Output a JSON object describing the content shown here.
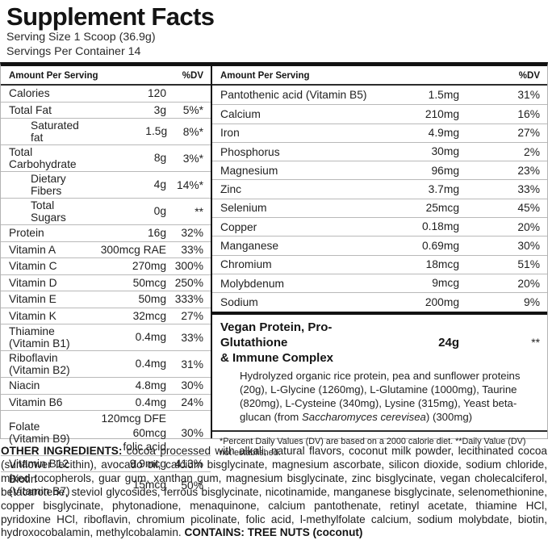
{
  "colors": {
    "text": "#1f1f1f",
    "bar": "#121212",
    "separator": "#b9b9b9",
    "background": "#ffffff"
  },
  "header": {
    "title": "Supplement Facts",
    "serving_size": "Serving Size 1 Scoop (36.9g)",
    "servings_per_container": "Servings Per Container 14"
  },
  "table": {
    "left": {
      "col_header": {
        "amount_label": "Amount Per Serving",
        "dv_label": "%DV"
      },
      "rows": [
        {
          "label": "Calories",
          "amount": "120",
          "dv": ""
        },
        {
          "label": "Total Fat",
          "amount": "3g",
          "dv": "5%*"
        },
        {
          "label": "Saturated fat",
          "amount": "1.5g",
          "dv": "8%*",
          "indent": true
        },
        {
          "label": "Total Carbohydrate",
          "amount": "8g",
          "dv": "3%*"
        },
        {
          "label": "Dietary Fibers",
          "amount": "4g",
          "dv": "14%*",
          "indent": true
        },
        {
          "label": "Total Sugars",
          "amount": "0g",
          "dv": "**",
          "indent": true
        },
        {
          "label": "Protein",
          "amount": "16g",
          "dv": "32%"
        },
        {
          "label": "Vitamin A",
          "amount": "300mcg RAE",
          "dv": "33%"
        },
        {
          "label": "Vitamin C",
          "amount": "270mg",
          "dv": "300%"
        },
        {
          "label": "Vitamin D",
          "amount": "50mcg",
          "dv": "250%"
        },
        {
          "label": "Vitamin E",
          "amount": "50mg",
          "dv": "333%"
        },
        {
          "label": "Vitamin K",
          "amount": "32mcg",
          "dv": "27%"
        },
        {
          "label": "Thiamine (Vitamin B1)",
          "amount": "0.4mg",
          "dv": "33%"
        },
        {
          "label": "Riboflavin (Vitamin B2)",
          "amount": "0.4mg",
          "dv": "31%"
        },
        {
          "label": "Niacin",
          "amount": "4.8mg",
          "dv": "30%"
        },
        {
          "label": "Vitamin B6",
          "amount": "0.4mg",
          "dv": "24%"
        },
        {
          "label": "Folate (Vitamin B9)",
          "amount": "120mcg DFE\n60mcg\nfolic acid",
          "dv": "30%"
        },
        {
          "label": "Vitamin B12",
          "amount": "9.9mcg",
          "dv": "413%"
        },
        {
          "label": "Biotin (Vitamin B7)",
          "amount": "15mcg",
          "dv": "50%"
        }
      ]
    },
    "right": {
      "col_header": {
        "amount_label": "Amount Per Serving",
        "dv_label": "%DV"
      },
      "rows": [
        {
          "label": "Pantothenic acid (Vitamin B5)",
          "amount": "1.5mg",
          "dv": "31%"
        },
        {
          "label": "Calcium",
          "amount": "210mg",
          "dv": "16%"
        },
        {
          "label": "Iron",
          "amount": "4.9mg",
          "dv": "27%"
        },
        {
          "label": "Phosphorus",
          "amount": "30mg",
          "dv": "2%"
        },
        {
          "label": "Magnesium",
          "amount": "96mg",
          "dv": "23%"
        },
        {
          "label": "Zinc",
          "amount": "3.7mg",
          "dv": "33%"
        },
        {
          "label": "Selenium",
          "amount": "25mcg",
          "dv": "45%"
        },
        {
          "label": "Copper",
          "amount": "0.18mg",
          "dv": "20%"
        },
        {
          "label": "Manganese",
          "amount": "0.69mg",
          "dv": "30%"
        },
        {
          "label": "Chromium",
          "amount": "18mcg",
          "dv": "51%"
        },
        {
          "label": "Molybdenum",
          "amount": "9mcg",
          "dv": "20%"
        },
        {
          "label": "Sodium",
          "amount": "200mg",
          "dv": "9%"
        }
      ],
      "complex": {
        "name": "Vegan Protein, Pro-Glutathione\n& Immune Complex",
        "amount": "24g",
        "dv": "**",
        "desc_before": "Hydrolyzed organic rice protein, pea and sunflower proteins (20g), L-Glycine (1260mg), L-Glutamine (1000mg), Taurine (820mg), L-Cysteine (340mg), Lysine (315mg), Yeast beta-glucan (from ",
        "desc_italic": "Saccharomyces cerevisea",
        "desc_after": ") (300mg)"
      },
      "footnote": "*Percent Daily Values (DV) are based on a 2000 calorie diet. **Daily Value (DV) not established."
    }
  },
  "other_ingredients": {
    "lead": "OTHER INGREDIENTS:",
    "body": " cocoa processed with alkali, natural flavors, coconut milk powder, lecithinated cocoa (sunflower lecithin), avocado oil, calcium bisglycinate, magnesium ascorbate, silicon dioxide, sodium chloride, mixed tocopherols, guar gum, xanthan gum, magnesium bisglycinate, zinc bisglycinate, vegan cholecalciferol, betacarotene, steviol glycosides, ferrous bisglycinate, nicotinamide, manganese bisglycinate, selenomethionine, copper bisglycinate, phytonadione, menaquinone, calcium pantothenate, retinyl acetate, thiamine HCl, pyridoxine HCl, riboflavin, chromium picolinate, folic acid, l-methylfolate calcium, sodium molybdate, biotin, hydroxocobalamin, methylcobalamin. ",
    "contains": "CONTAINS: TREE NUTS (coconut)"
  }
}
